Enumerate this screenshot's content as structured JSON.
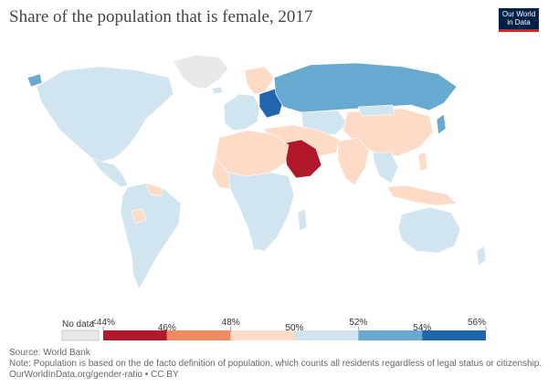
{
  "title": "Share of the population that is female, 2017",
  "logo": {
    "line1": "Our World",
    "line2": "in Data"
  },
  "legend": {
    "no_data_label": "No data",
    "tick_labels": [
      "<44%",
      "46%",
      "48%",
      "50%",
      "52%",
      "54%",
      "56%"
    ],
    "bins": [
      {
        "color": "#b2182b"
      },
      {
        "color": "#ef8a62"
      },
      {
        "color": "#fddbc7"
      },
      {
        "color": "#d1e5f0"
      },
      {
        "color": "#67a9cf"
      },
      {
        "color": "#2166ac"
      }
    ]
  },
  "colors": {
    "no_data": "#e8e8e8",
    "border": "#ffffff"
  },
  "footer": {
    "source": "Source: World Bank",
    "note": "Note: Population is based on the de facto definition of population, which counts all residents regardless of legal status or citizenship.",
    "link": "OurWorldInData.org/gender-ratio",
    "license": " • CC BY"
  }
}
